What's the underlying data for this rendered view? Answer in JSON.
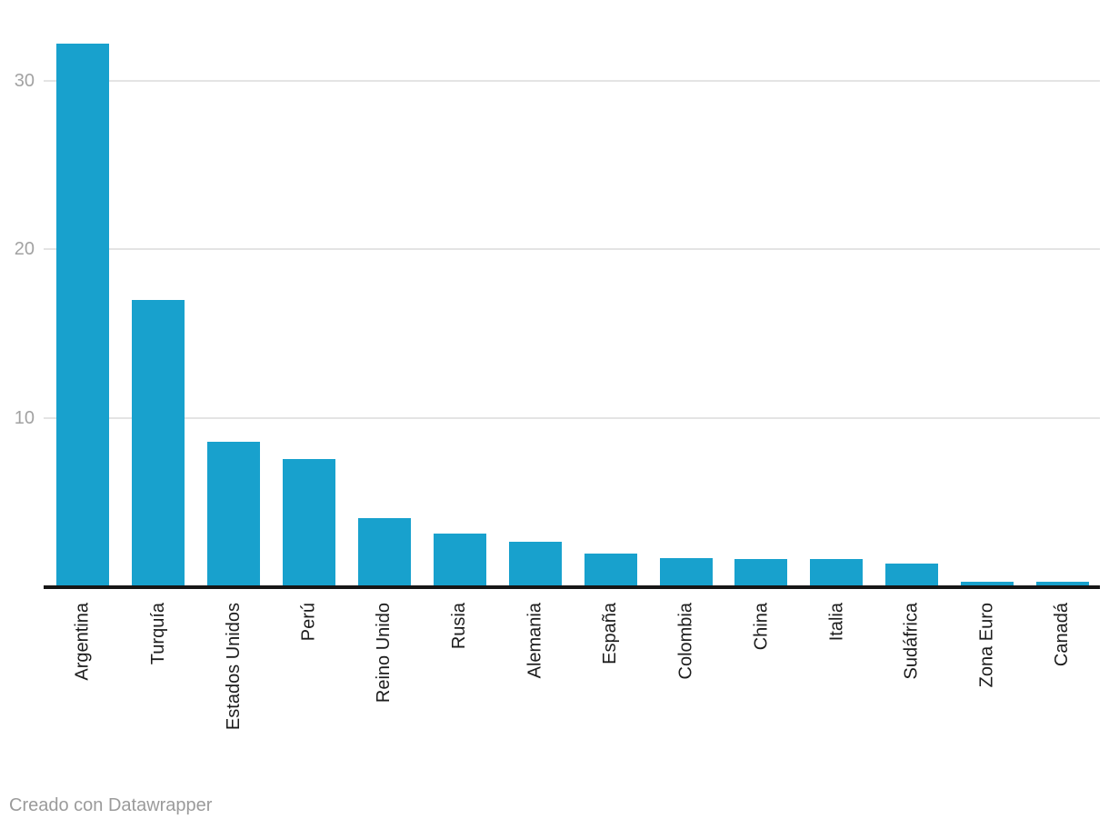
{
  "chart_data": {
    "type": "bar",
    "orientation": "vertical",
    "categories": [
      "Argentina",
      "Turquía",
      "Estados Unidos",
      "Perú",
      "Reino Unido",
      "Rusia",
      "Alemania",
      "España",
      "Colombia",
      "China",
      "Italia",
      "Sudáfrica",
      "Zona Euro",
      "Canadá"
    ],
    "values": [
      32.2,
      17.0,
      8.6,
      7.6,
      4.1,
      3.2,
      2.7,
      2.0,
      1.7,
      1.65,
      1.65,
      1.4,
      0.3,
      0.3
    ],
    "title": "",
    "xlabel": "",
    "ylabel": "",
    "ylim": [
      0,
      33
    ],
    "yticks": [
      10,
      20,
      30
    ],
    "grid": "horizontal gridlines only",
    "legend": "none",
    "x_label_rotation": -90
  },
  "colors": {
    "bar": "#18a1cd",
    "gridline": "#e4e4e4",
    "axis_line": "#161616",
    "tick_label": "#a2a2a2",
    "category_label": "#1c1c1c",
    "footer_text": "#9b9b9b",
    "background": "#ffffff"
  },
  "footer": {
    "credit": "Creado con Datawrapper"
  }
}
